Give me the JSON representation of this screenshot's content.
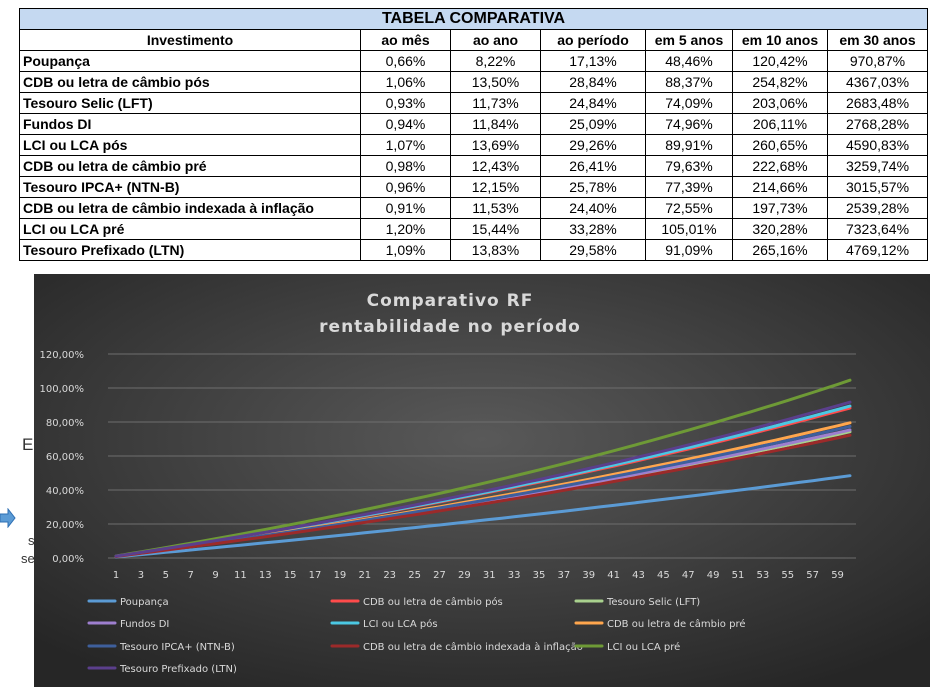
{
  "table": {
    "title": "TABELA COMPARATIVA",
    "headers": [
      "Investimento",
      "ao mês",
      "ao ano",
      "ao período",
      "em 5 anos",
      "em 10 anos",
      "em 30 anos"
    ],
    "rows": [
      [
        "Poupança",
        "0,66%",
        "8,22%",
        "17,13%",
        "48,46%",
        "120,42%",
        "970,87%"
      ],
      [
        "CDB ou letra de câmbio pós",
        "1,06%",
        "13,50%",
        "28,84%",
        "88,37%",
        "254,82%",
        "4367,03%"
      ],
      [
        "Tesouro Selic (LFT)",
        "0,93%",
        "11,73%",
        "24,84%",
        "74,09%",
        "203,06%",
        "2683,48%"
      ],
      [
        "Fundos DI",
        "0,94%",
        "11,84%",
        "25,09%",
        "74,96%",
        "206,11%",
        "2768,28%"
      ],
      [
        "LCI ou LCA pós",
        "1,07%",
        "13,69%",
        "29,26%",
        "89,91%",
        "260,65%",
        "4590,83%"
      ],
      [
        "CDB ou letra de câmbio pré",
        "0,98%",
        "12,43%",
        "26,41%",
        "79,63%",
        "222,68%",
        "3259,74%"
      ],
      [
        "Tesouro IPCA+ (NTN-B)",
        "0,96%",
        "12,15%",
        "25,78%",
        "77,39%",
        "214,66%",
        "3015,57%"
      ],
      [
        "CDB ou letra de câmbio indexada à inflação",
        "0,91%",
        "11,53%",
        "24,40%",
        "72,55%",
        "197,73%",
        "2539,28%"
      ],
      [
        "LCI ou LCA pré",
        "1,20%",
        "15,44%",
        "33,28%",
        "105,01%",
        "320,28%",
        "7323,64%"
      ],
      [
        "Tesouro Prefixado (LTN)",
        "1,09%",
        "13,83%",
        "29,58%",
        "91,09%",
        "265,16%",
        "4769,12%"
      ]
    ]
  },
  "chart_data": {
    "type": "line",
    "title": "Comparativo RF",
    "subtitle": "rentabilidade no período",
    "x_start": 1,
    "x_end": 60,
    "x_tick_labels": [
      "1",
      "3",
      "5",
      "7",
      "9",
      "11",
      "13",
      "15",
      "17",
      "19",
      "21",
      "23",
      "25",
      "27",
      "29",
      "31",
      "33",
      "35",
      "37",
      "39",
      "41",
      "43",
      "45",
      "47",
      "49",
      "51",
      "53",
      "55",
      "57",
      "59"
    ],
    "y_tick_labels": [
      "0,00%",
      "20,00%",
      "40,00%",
      "60,00%",
      "80,00%",
      "100,00%",
      "120,00%"
    ],
    "ylim": [
      0,
      120
    ],
    "grid": "horizontal",
    "legend_position": "bottom",
    "series": [
      {
        "name": "Poupança",
        "monthly_rate": 0.66,
        "color": "#5b9bd5"
      },
      {
        "name": "CDB ou letra de câmbio pós",
        "monthly_rate": 1.06,
        "color": "#ff4b4b"
      },
      {
        "name": "Tesouro Selic (LFT)",
        "monthly_rate": 0.93,
        "color": "#a9d18e"
      },
      {
        "name": "Fundos DI",
        "monthly_rate": 0.94,
        "color": "#9e7fcf"
      },
      {
        "name": "LCI ou LCA pós",
        "monthly_rate": 1.07,
        "color": "#4bc8e3"
      },
      {
        "name": "CDB ou letra de câmbio pré",
        "monthly_rate": 0.98,
        "color": "#ffa64d"
      },
      {
        "name": "Tesouro IPCA+ (NTN-B)",
        "monthly_rate": 0.96,
        "color": "#3e5f9c"
      },
      {
        "name": "CDB ou letra de câmbio indexada à inflação",
        "monthly_rate": 0.91,
        "color": "#9c2a2a"
      },
      {
        "name": "LCI ou LCA pré",
        "monthly_rate": 1.2,
        "color": "#6e9a36"
      },
      {
        "name": "Tesouro Prefixado (LTN)",
        "monthly_rate": 1.09,
        "color": "#5b3f8c"
      }
    ]
  },
  "background_fragments": {
    "left_1": "E",
    "left_2": "s",
    "left_3": "se"
  },
  "colors": {
    "table_title_bg": "#c5d9f1",
    "chart_bg_center": "#595959",
    "chart_bg_edge": "#262626",
    "arrow": "#5b9bd5"
  }
}
